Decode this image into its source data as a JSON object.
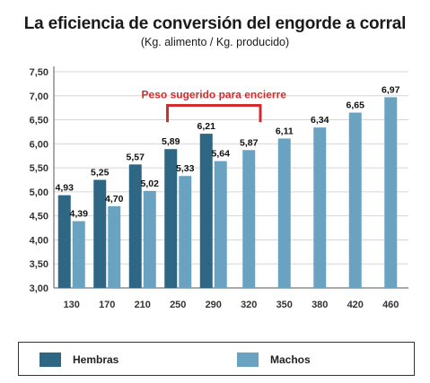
{
  "title": "La eficiencia de conversión del engorde a corral",
  "subtitle": "(Kg. alimento / Kg. producido)",
  "annotation": {
    "text": "Peso sugerido para encierre",
    "from": "250",
    "to": "320",
    "color": "#d22c2c"
  },
  "colors": {
    "hembras": "#2e6784",
    "machos": "#6aa3c2"
  },
  "legend": [
    {
      "name": "Hembras",
      "color": "#2e6784"
    },
    {
      "name": "Machos",
      "color": "#6aa3c2"
    }
  ],
  "chart_data": {
    "type": "bar",
    "title": "La eficiencia de conversión del engorde a corral",
    "subtitle": "(Kg. alimento / Kg. producido)",
    "xlabel": "",
    "ylabel": "",
    "categories": [
      "130",
      "170",
      "210",
      "250",
      "290",
      "320",
      "350",
      "380",
      "420",
      "460"
    ],
    "series": [
      {
        "name": "Hembras",
        "values": [
          4.93,
          5.25,
          5.57,
          5.89,
          6.21,
          null,
          null,
          null,
          null,
          null
        ]
      },
      {
        "name": "Machos",
        "values": [
          4.39,
          4.7,
          5.02,
          5.33,
          5.64,
          5.87,
          6.11,
          6.34,
          6.65,
          6.97
        ]
      }
    ],
    "value_labels": {
      "Hembras": [
        "4,93",
        "5,25",
        "5,57",
        "5,89",
        "6,21",
        null,
        null,
        null,
        null,
        null
      ],
      "Machos": [
        "4,39",
        "4,70",
        "5,02",
        "5,33",
        "5,64",
        "5,87",
        "6,11",
        "6,34",
        "6,65",
        "6,97"
      ]
    },
    "ylim": [
      3.0,
      7.5
    ],
    "yticks": [
      3.0,
      3.5,
      4.0,
      4.5,
      5.0,
      5.5,
      6.0,
      6.5,
      7.0,
      7.5
    ],
    "ytick_labels": [
      "3,00",
      "3,50",
      "4,00",
      "4,50",
      "5,00",
      "5,50",
      "6,00",
      "6,50",
      "7,00",
      "7,50"
    ],
    "grid": true,
    "legend_position": "bottom"
  }
}
